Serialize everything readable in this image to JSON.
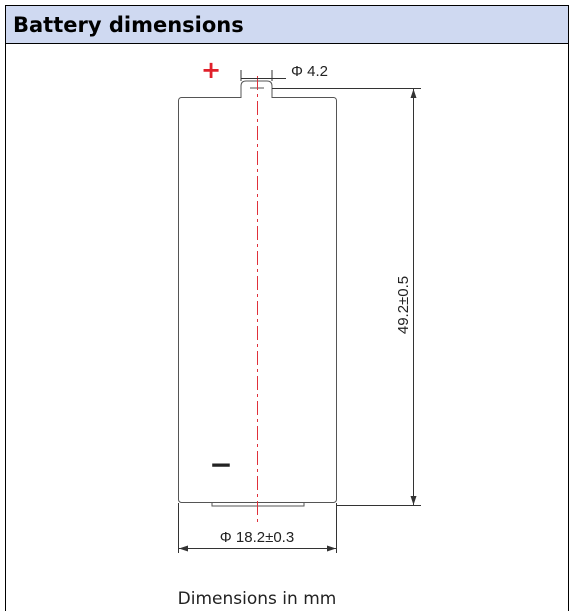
{
  "header": {
    "title": "Battery dimensions"
  },
  "drawing": {
    "positive": "+",
    "negative": "−",
    "terminal_diameter": "Φ 4.2",
    "length": "49.2±0.5",
    "diameter": "Φ 18.2±0.3",
    "caption": "Dimensions in mm"
  }
}
